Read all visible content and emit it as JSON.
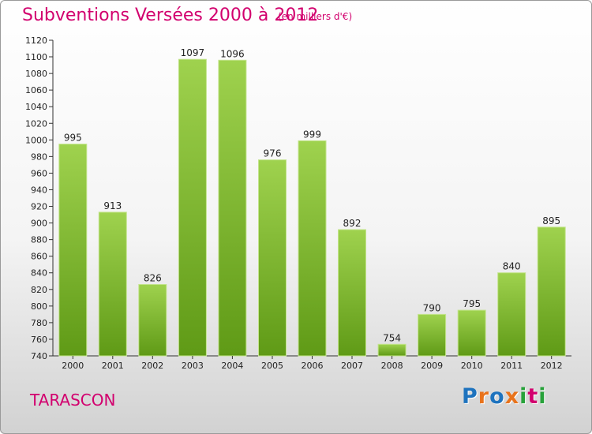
{
  "header": {
    "title": "Subventions Versées 2000 à 2012",
    "subtitle": "(en milliers d'€)"
  },
  "footer": {
    "commune": "TARASCON",
    "logo": [
      "P",
      "r",
      "o",
      "x",
      "i",
      "t",
      "i"
    ]
  },
  "colors": {
    "title": "#d2006e",
    "bar_top": "#9fd24e",
    "bar_bottom": "#5f9a16",
    "logo": [
      "#1e73be",
      "#e8731c",
      "#1e73be",
      "#e8731c",
      "#27a23a",
      "#d2006e",
      "#27a23a"
    ]
  },
  "chart_data": {
    "type": "bar",
    "categories": [
      "2000",
      "2001",
      "2002",
      "2003",
      "2004",
      "2005",
      "2006",
      "2007",
      "2008",
      "2009",
      "2010",
      "2011",
      "2012"
    ],
    "values": [
      995,
      913,
      826,
      1097,
      1096,
      976,
      999,
      892,
      754,
      790,
      795,
      840,
      895
    ],
    "data_labels": [
      "995",
      "913",
      "826",
      "1097",
      "1096",
      "976",
      "999",
      "892",
      "754",
      "790",
      "795",
      "840",
      "895"
    ],
    "title": "Subventions Versées 2000 à 2012",
    "subtitle": "(en milliers d'€)",
    "ylim": [
      740,
      1120
    ],
    "yticks": [
      740,
      760,
      780,
      800,
      820,
      840,
      860,
      880,
      900,
      920,
      940,
      960,
      980,
      1000,
      1020,
      1040,
      1060,
      1080,
      1100,
      1120
    ],
    "grid": false,
    "legend": "none"
  }
}
